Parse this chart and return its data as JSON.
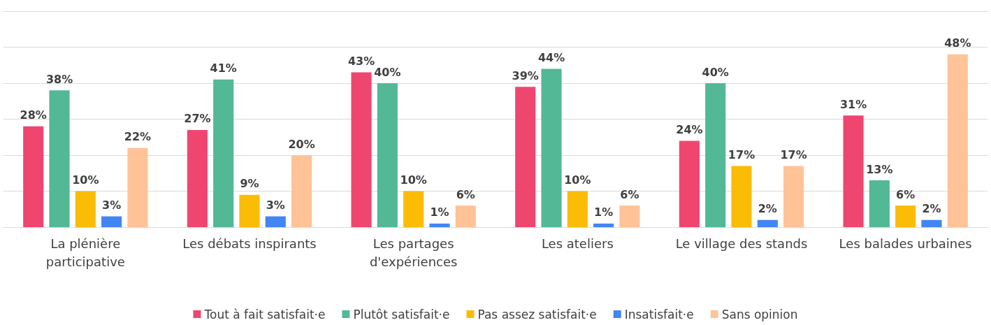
{
  "chart_data": {
    "type": "bar",
    "categories": [
      "La plénière\nparticipative",
      "Les débats inspirants",
      "Les partages\nd'expériences",
      "Les ateliers",
      "Le village des stands",
      "Les balades urbaines"
    ],
    "series": [
      {
        "name": "Tout à fait satisfait·e",
        "color": "#ef4670",
        "values": [
          28,
          27,
          43,
          39,
          24,
          31
        ],
        "value_labels": [
          "28%",
          "27%",
          "43%",
          "39%",
          "24%",
          "31%"
        ]
      },
      {
        "name": "Plutôt satisfait·e",
        "color": "#52b895",
        "values": [
          38,
          41,
          40,
          44,
          40,
          13
        ],
        "value_labels": [
          "38%",
          "41%",
          "40%",
          "44%",
          "40%",
          "13%"
        ]
      },
      {
        "name": "Pas assez satisfait·e",
        "color": "#fbbc05",
        "values": [
          10,
          9,
          10,
          10,
          17,
          6
        ],
        "value_labels": [
          "10%",
          "9%",
          "10%",
          "10%",
          "17%",
          "6%"
        ]
      },
      {
        "name": "Insatisfait·e",
        "color": "#4285f4",
        "values": [
          3,
          3,
          1,
          1,
          2,
          2
        ],
        "value_labels": [
          "3%",
          "3%",
          "1%",
          "1%",
          "2%",
          "2%"
        ]
      },
      {
        "name": "Sans opinion",
        "color": "#ffc397",
        "values": [
          22,
          20,
          6,
          6,
          17,
          48
        ],
        "value_labels": [
          "22%",
          "20%",
          "6%",
          "6%",
          "17%",
          "48%"
        ]
      }
    ],
    "ylim": [
      0,
      60
    ],
    "yticks": [
      {
        "value": 0,
        "label": null
      },
      {
        "value": 10,
        "label": null
      },
      {
        "value": 20,
        "label": null
      },
      {
        "value": 30,
        "label": null
      },
      {
        "value": 40,
        "label": null
      },
      {
        "value": 50,
        "label": null
      },
      {
        "value": 60,
        "label": null
      }
    ],
    "grid": "y",
    "legend": "bottom",
    "tick_labels": "x"
  }
}
